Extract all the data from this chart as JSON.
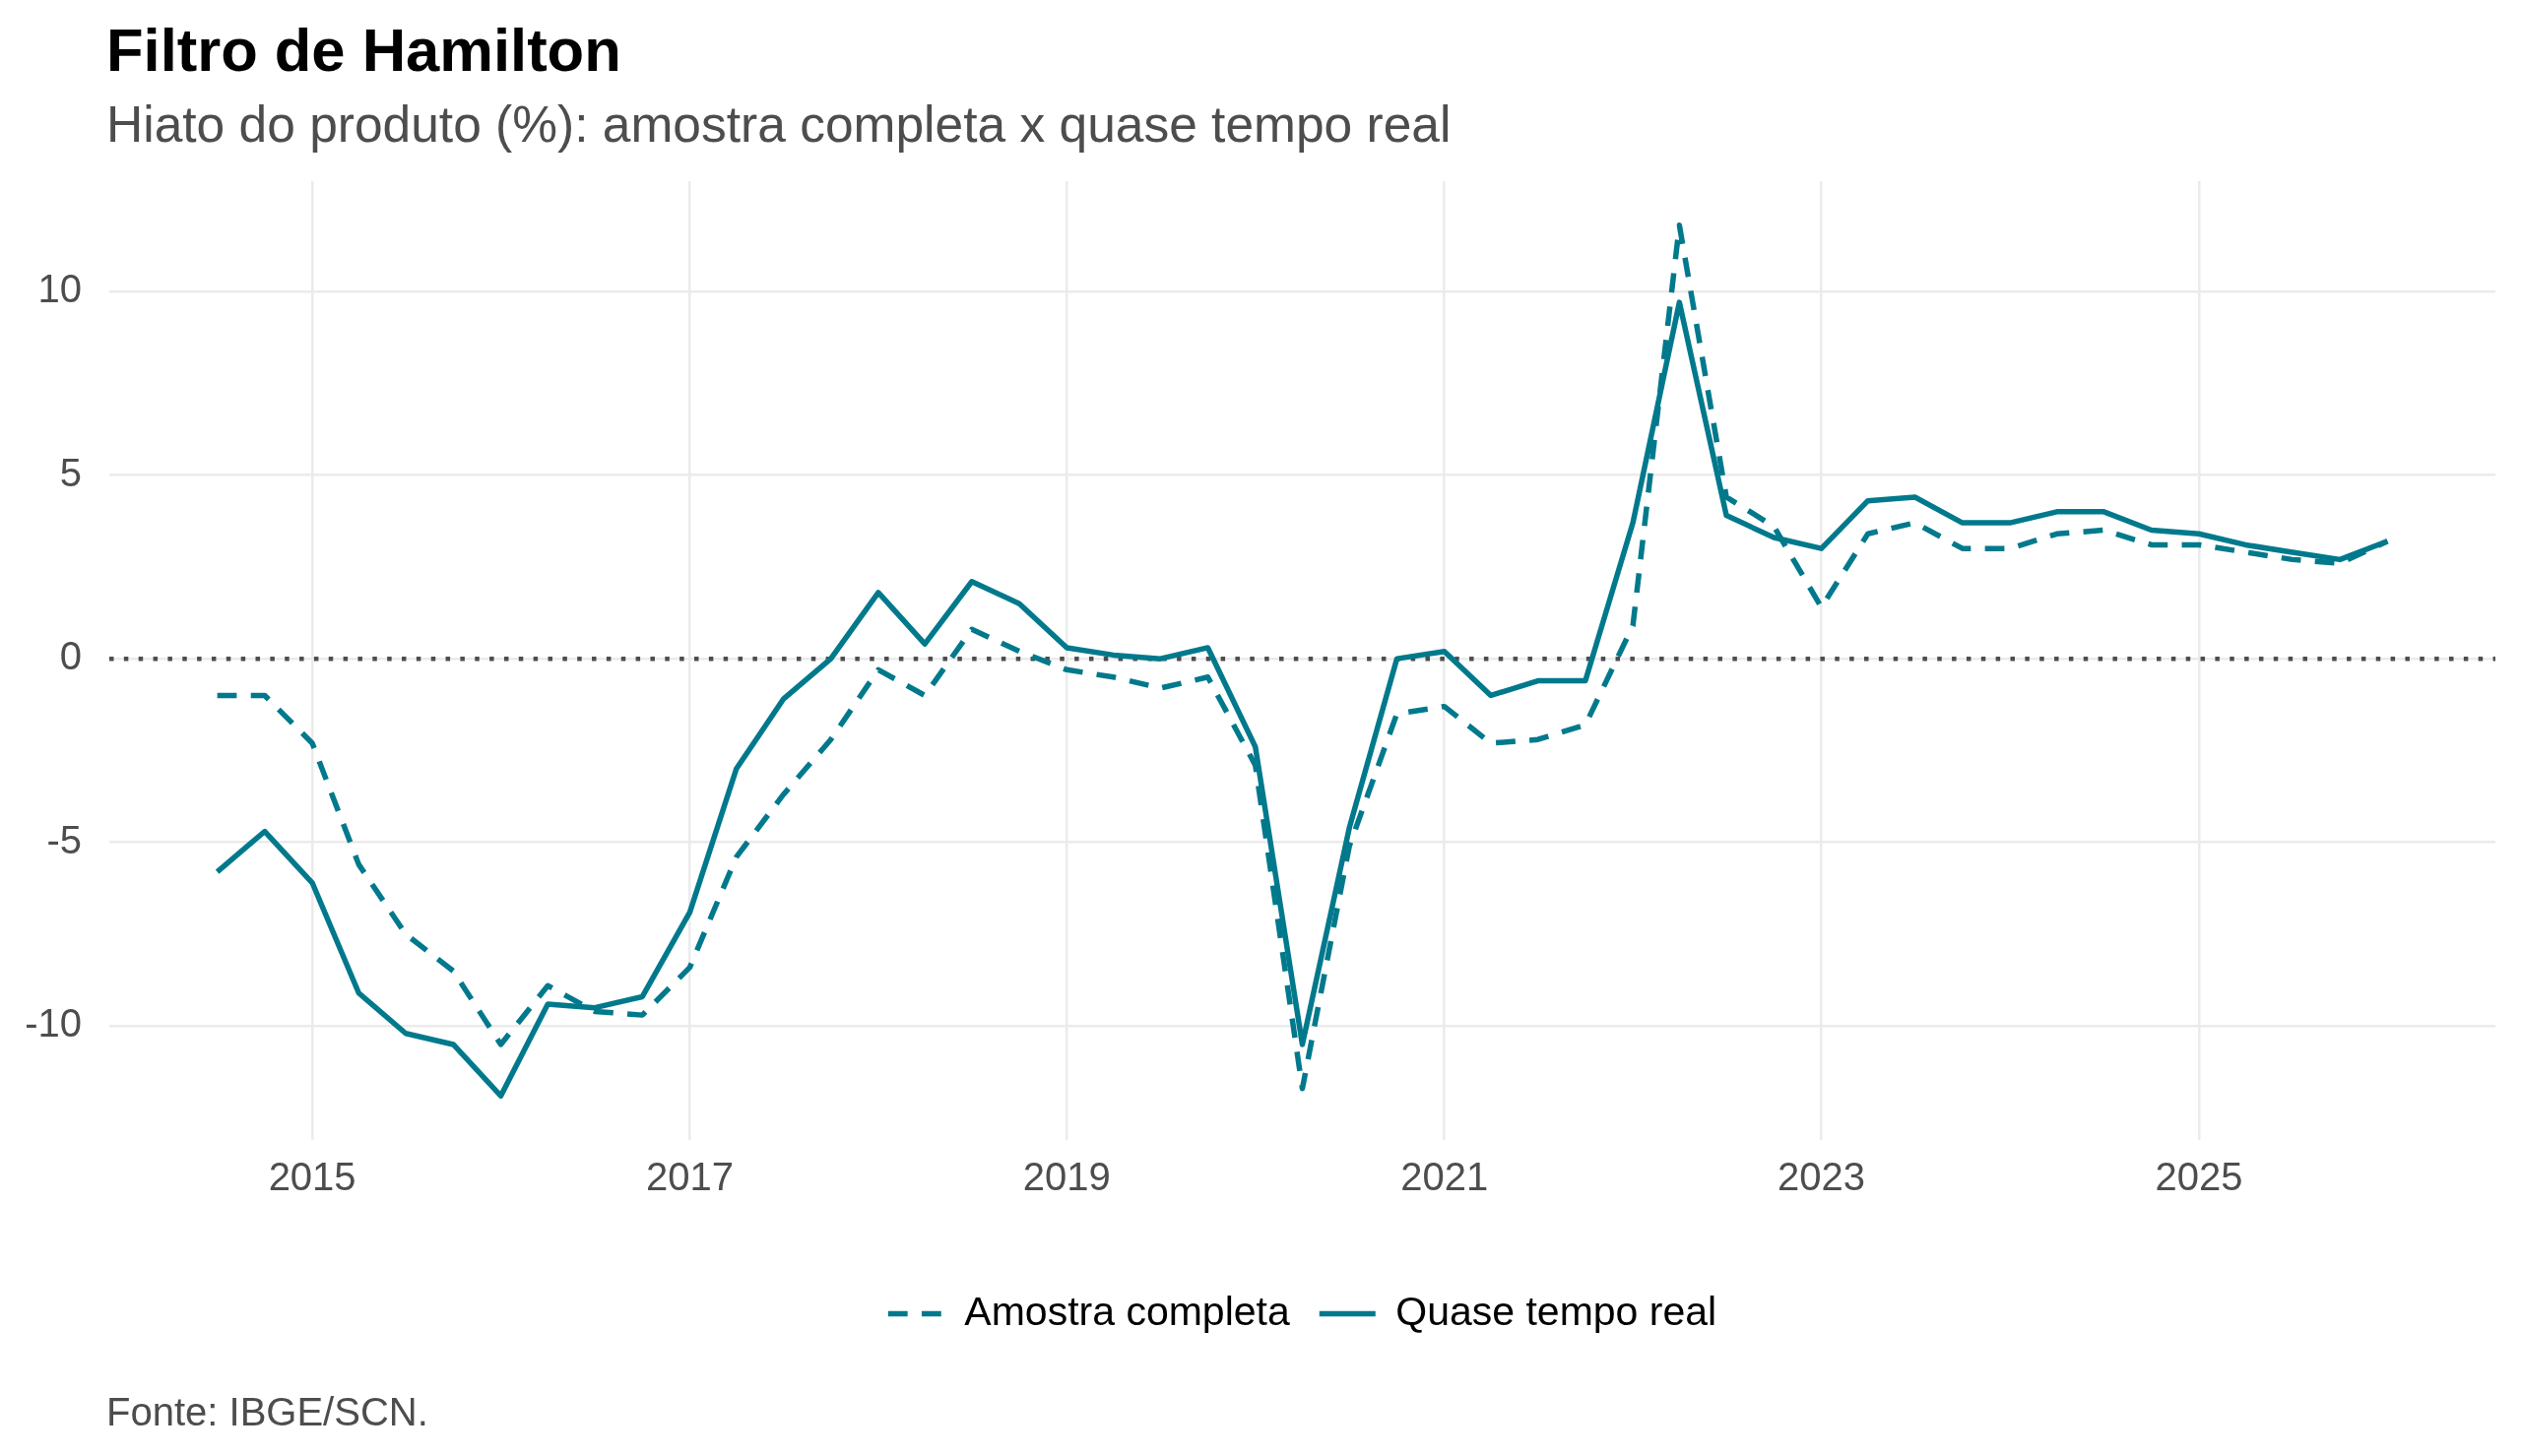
{
  "chart_data": {
    "type": "line",
    "title": "Filtro de Hamilton",
    "subtitle": "Hiato do produto (%): amostra completa x quase tempo real",
    "annotations": [
      "Fonte: IBGE/SCN."
    ],
    "x": [
      "2014-07-01",
      "2014-10-01",
      "2015-01-01",
      "2015-04-01",
      "2015-07-01",
      "2015-10-01",
      "2016-01-01",
      "2016-04-01",
      "2016-07-01",
      "2016-10-01",
      "2017-01-01",
      "2017-04-01",
      "2017-07-01",
      "2017-10-01",
      "2018-01-01",
      "2018-04-01",
      "2018-07-01",
      "2018-10-01",
      "2019-01-01",
      "2019-04-01",
      "2019-07-01",
      "2019-10-01",
      "2020-01-01",
      "2020-04-01",
      "2020-07-01",
      "2020-10-01",
      "2021-01-01",
      "2021-04-01",
      "2021-07-01",
      "2021-10-01",
      "2022-01-01",
      "2022-04-01",
      "2022-07-01",
      "2022-10-01",
      "2023-01-01",
      "2023-04-01",
      "2023-07-01",
      "2023-10-01",
      "2024-01-01",
      "2024-04-01",
      "2024-07-01",
      "2024-10-01",
      "2025-01-01",
      "2025-04-01",
      "2025-07-01",
      "2025-10-01",
      "2026-01-01"
    ],
    "series": [
      {
        "name": "Amostra completa",
        "color": "#00798c",
        "line_style": "dashed",
        "values": [
          -1.0,
          -1.0,
          -2.3,
          -5.6,
          -7.5,
          -8.5,
          -10.5,
          -8.9,
          -9.6,
          -9.7,
          -8.4,
          -5.4,
          -3.7,
          -2.2,
          -0.3,
          -1.0,
          0.8,
          0.2,
          -0.3,
          -0.5,
          -0.8,
          -0.5,
          -2.9,
          -11.7,
          -5.1,
          -1.5,
          -1.3,
          -2.3,
          -2.2,
          -1.8,
          0.9,
          11.8,
          4.4,
          3.6,
          1.4,
          3.4,
          3.7,
          3.0,
          3.0,
          3.4,
          3.5,
          3.1,
          3.1,
          2.9,
          2.7,
          2.6,
          3.2
        ]
      },
      {
        "name": "Quase tempo real",
        "color": "#00798c",
        "line_style": "solid",
        "values": [
          -5.8,
          -4.7,
          -6.1,
          -9.1,
          -10.2,
          -10.5,
          -11.9,
          -9.4,
          -9.5,
          -9.2,
          -6.9,
          -3.0,
          -1.1,
          0.0,
          1.8,
          0.4,
          2.1,
          1.5,
          0.3,
          0.1,
          0.0,
          0.3,
          -2.4,
          -10.5,
          -4.6,
          0.0,
          0.2,
          -1.0,
          -0.6,
          -0.6,
          3.7,
          9.7,
          3.9,
          3.3,
          3.0,
          4.3,
          4.4,
          3.7,
          3.7,
          4.0,
          4.0,
          3.5,
          3.4,
          3.1,
          2.9,
          2.7,
          3.2
        ]
      }
    ],
    "xlim": [
      "2013-12-04",
      "2026-07-29"
    ],
    "xticks": [
      "2015",
      "2017",
      "2019",
      "2021",
      "2023",
      "2025"
    ],
    "ylim": [
      -13.1,
      13
    ],
    "yticks": [
      -10,
      -5,
      0,
      5,
      10
    ],
    "ref_lines": [
      {
        "axis": "y",
        "value": 0,
        "color": "#4d4d4d",
        "line_style": "dotted"
      }
    ],
    "grid": true,
    "legend": "bottom"
  }
}
